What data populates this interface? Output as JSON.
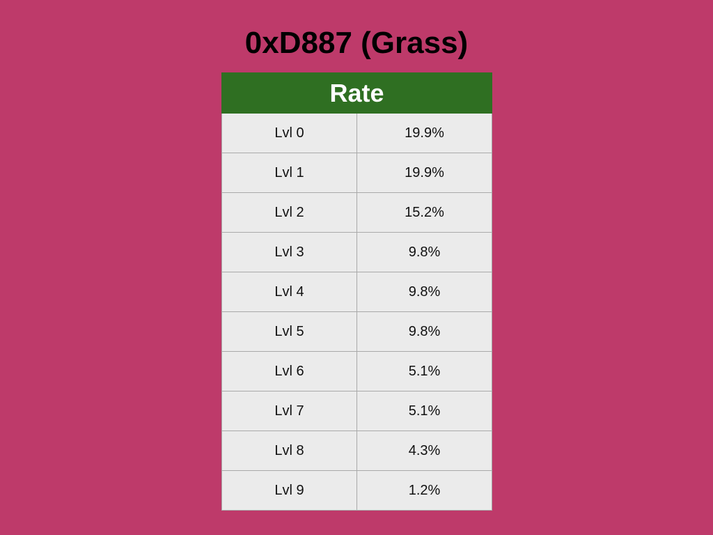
{
  "title": "0xD887 (Grass)",
  "table": {
    "header": "Rate",
    "rows": [
      {
        "level": "Lvl 0",
        "rate": "19.9%"
      },
      {
        "level": "Lvl 1",
        "rate": "19.9%"
      },
      {
        "level": "Lvl 2",
        "rate": "15.2%"
      },
      {
        "level": "Lvl 3",
        "rate": "9.8%"
      },
      {
        "level": "Lvl 4",
        "rate": "9.8%"
      },
      {
        "level": "Lvl 5",
        "rate": "9.8%"
      },
      {
        "level": "Lvl 6",
        "rate": "5.1%"
      },
      {
        "level": "Lvl 7",
        "rate": "5.1%"
      },
      {
        "level": "Lvl 8",
        "rate": "4.3%"
      },
      {
        "level": "Lvl 9",
        "rate": "1.2%"
      }
    ]
  },
  "colors": {
    "background": "#BE3A6A",
    "header_background": "#2F6F22",
    "header_text": "#FFFFFF",
    "cell_background": "#EBEBEB",
    "cell_border": "#A9A9A9"
  }
}
